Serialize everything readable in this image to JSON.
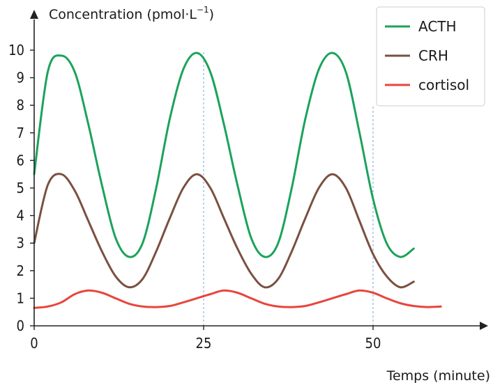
{
  "chart_data": {
    "type": "line",
    "ylabel": "Concentration (pmol·L",
    "ylabel_sup": "−1",
    "ylabel_close": ")",
    "xlabel": "Temps (minute)",
    "xlim": [
      0,
      65
    ],
    "ylim": [
      0,
      11
    ],
    "x_ticks": [
      0,
      25,
      50
    ],
    "y_ticks": [
      0,
      1,
      2,
      3,
      4,
      5,
      6,
      7,
      8,
      9,
      10
    ],
    "reference_lines_x": [
      25,
      50
    ],
    "legend_position": "top-right",
    "series": [
      {
        "name": "ACTH",
        "color": "#1aa35a",
        "x": [
          0,
          2,
          4,
          6,
          8,
          10,
          12,
          14,
          16,
          18,
          20,
          22,
          24,
          26,
          28,
          30,
          32,
          34,
          36,
          38,
          40,
          42,
          44,
          46,
          48,
          50,
          52,
          54,
          56
        ],
        "y": [
          5.5,
          9.2,
          9.8,
          9.2,
          7.3,
          5.1,
          3.2,
          2.5,
          3.0,
          5.0,
          7.5,
          9.3,
          9.9,
          9.2,
          7.3,
          5.1,
          3.2,
          2.5,
          3.0,
          5.0,
          7.5,
          9.3,
          9.9,
          9.2,
          7.0,
          4.6,
          3.0,
          2.5,
          2.8
        ]
      },
      {
        "name": "CRH",
        "color": "#7a5040",
        "x": [
          0,
          2,
          4,
          6,
          8,
          10,
          12,
          14,
          16,
          18,
          20,
          22,
          24,
          26,
          28,
          30,
          32,
          34,
          36,
          38,
          40,
          42,
          44,
          46,
          48,
          50,
          52,
          54,
          56
        ],
        "y": [
          3.0,
          5.1,
          5.5,
          4.9,
          3.8,
          2.7,
          1.8,
          1.4,
          1.7,
          2.7,
          3.9,
          5.0,
          5.5,
          5.0,
          3.9,
          2.8,
          1.9,
          1.4,
          1.7,
          2.7,
          3.9,
          5.0,
          5.5,
          5.0,
          3.8,
          2.6,
          1.8,
          1.4,
          1.6
        ]
      },
      {
        "name": "cortisol",
        "color": "#e8453c",
        "x": [
          0,
          2,
          4,
          6,
          8,
          10,
          12,
          14,
          16,
          18,
          20,
          22,
          24,
          26,
          28,
          30,
          32,
          34,
          36,
          38,
          40,
          42,
          44,
          46,
          48,
          50,
          52,
          54,
          56,
          58,
          60
        ],
        "y": [
          0.65,
          0.7,
          0.85,
          1.15,
          1.28,
          1.2,
          1.0,
          0.8,
          0.7,
          0.68,
          0.72,
          0.85,
          1.0,
          1.15,
          1.28,
          1.2,
          1.0,
          0.8,
          0.7,
          0.68,
          0.72,
          0.85,
          1.0,
          1.15,
          1.28,
          1.2,
          1.0,
          0.82,
          0.72,
          0.68,
          0.7
        ]
      }
    ]
  }
}
